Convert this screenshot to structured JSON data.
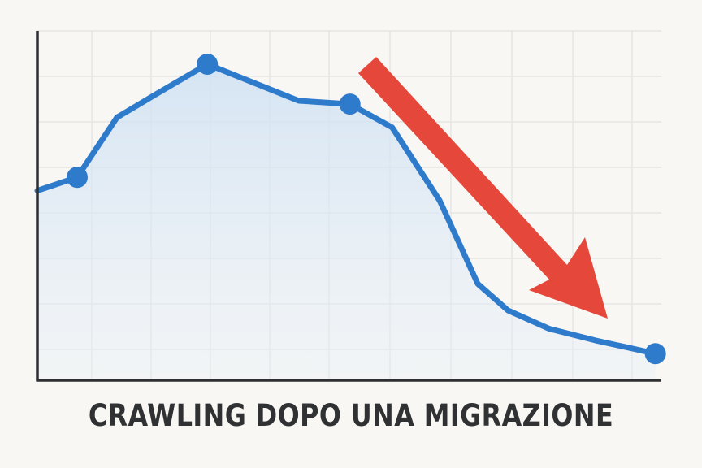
{
  "chart_data": {
    "type": "line",
    "title": "CRAWLING DOPO UNA MIGRAZIONE",
    "xlabel": "",
    "ylabel": "",
    "grid": true,
    "area_fill": true,
    "xlim": [
      0,
      10.5
    ],
    "ylim": [
      0,
      10.5
    ],
    "x": [
      0,
      0.67,
      1.34,
      2.0,
      2.86,
      4.4,
      5.26,
      5.97,
      6.77,
      7.41,
      7.92,
      8.61,
      9.39,
      10.4
    ],
    "series": [
      {
        "color": "#2f7bcb",
        "values": [
          5.7,
          6.1,
          7.9,
          8.6,
          9.5,
          8.4,
          8.3,
          7.6,
          5.4,
          2.9,
          2.1,
          1.55,
          1.2,
          0.8
        ],
        "markers": [
          1,
          4,
          6,
          13
        ]
      }
    ],
    "annotations": [
      {
        "type": "arrow",
        "direction": "down",
        "color": "#e5473a"
      }
    ]
  }
}
